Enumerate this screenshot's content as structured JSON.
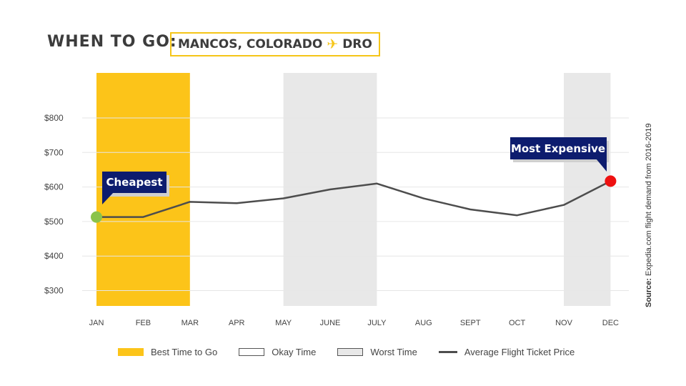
{
  "header": {
    "title": "WHEN TO GO:",
    "destination": "MANCOS, COLORADO",
    "airport": "DRO"
  },
  "source_label": "Source:",
  "source_text": "Expedia.com flight demand from 2016-2019",
  "legend": {
    "best": "Best Time to Go",
    "okay": "Okay Time",
    "worst": "Worst Time",
    "line": "Average Flight Ticket Price"
  },
  "colors": {
    "best": "#fcc419",
    "worst": "#e8e8e8",
    "line": "#4d4d4d",
    "cheapest": "#8bc34a",
    "expensive": "#ee1111",
    "callout": "#0d1c6e"
  },
  "chart_data": {
    "type": "line",
    "categories": [
      "JAN",
      "FEB",
      "MAR",
      "APR",
      "MAY",
      "JUNE",
      "JULY",
      "AUG",
      "SEPT",
      "OCT",
      "NOV",
      "DEC"
    ],
    "series": [
      {
        "name": "Average Flight Ticket Price",
        "values": [
          513,
          513,
          557,
          553,
          567,
          593,
          610,
          567,
          535,
          518,
          548,
          617
        ]
      }
    ],
    "y_ticks": [
      "$300",
      "$400",
      "$500",
      "$600",
      "$700",
      "$800"
    ],
    "y_tick_values": [
      300,
      400,
      500,
      600,
      700,
      800
    ],
    "ylim": [
      265,
      900
    ],
    "best_band": [
      "JAN",
      "MAR"
    ],
    "worst_bands": [
      [
        "MAY",
        "JULY"
      ],
      [
        "NOV",
        "DEC"
      ]
    ],
    "annotations": [
      {
        "label": "Cheapest",
        "category": "JAN"
      },
      {
        "label": "Most Expensive",
        "category": "DEC"
      }
    ],
    "grid": true
  }
}
